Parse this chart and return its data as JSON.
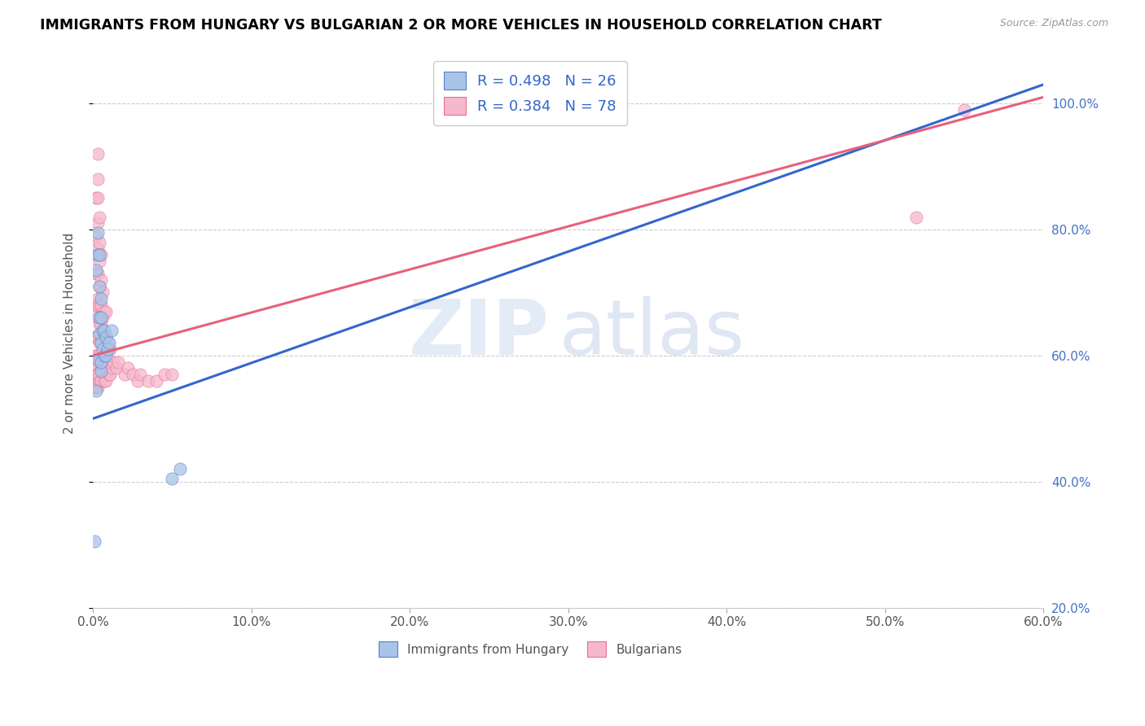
{
  "title": "IMMIGRANTS FROM HUNGARY VS BULGARIAN 2 OR MORE VEHICLES IN HOUSEHOLD CORRELATION CHART",
  "source": "Source: ZipAtlas.com",
  "ylabel": "2 or more Vehicles in Household",
  "xlim": [
    0.0,
    0.6
  ],
  "ylim": [
    0.2,
    1.07
  ],
  "hungary_color": "#a8c4e8",
  "bulgarian_color": "#f5b8cc",
  "hungary_edge_color": "#5580c8",
  "bulgarian_edge_color": "#e87090",
  "hungary_line_color": "#3366cc",
  "bulgarian_line_color": "#e8607a",
  "legend_text_1": "R = 0.498   N = 26",
  "legend_text_2": "R = 0.384   N = 78",
  "bottom_legend_1": "Immigrants from Hungary",
  "bottom_legend_2": "Bulgarians",
  "hungary_x": [
    0.001,
    0.002,
    0.002,
    0.003,
    0.003,
    0.003,
    0.004,
    0.004,
    0.004,
    0.004,
    0.005,
    0.005,
    0.005,
    0.005,
    0.005,
    0.006,
    0.006,
    0.007,
    0.007,
    0.008,
    0.008,
    0.009,
    0.01,
    0.012,
    0.05,
    0.055
  ],
  "hungary_y": [
    0.305,
    0.545,
    0.735,
    0.595,
    0.76,
    0.795,
    0.635,
    0.66,
    0.71,
    0.76,
    0.575,
    0.59,
    0.62,
    0.66,
    0.69,
    0.61,
    0.64,
    0.6,
    0.64,
    0.6,
    0.63,
    0.61,
    0.62,
    0.64,
    0.405,
    0.42
  ],
  "bulgarian_x": [
    0.001,
    0.001,
    0.001,
    0.001,
    0.001,
    0.002,
    0.002,
    0.002,
    0.002,
    0.002,
    0.002,
    0.002,
    0.002,
    0.002,
    0.003,
    0.003,
    0.003,
    0.003,
    0.003,
    0.003,
    0.003,
    0.003,
    0.003,
    0.003,
    0.003,
    0.003,
    0.004,
    0.004,
    0.004,
    0.004,
    0.004,
    0.004,
    0.004,
    0.004,
    0.004,
    0.004,
    0.004,
    0.005,
    0.005,
    0.005,
    0.005,
    0.005,
    0.005,
    0.005,
    0.005,
    0.006,
    0.006,
    0.006,
    0.006,
    0.007,
    0.007,
    0.007,
    0.007,
    0.008,
    0.008,
    0.008,
    0.008,
    0.009,
    0.009,
    0.01,
    0.01,
    0.011,
    0.011,
    0.012,
    0.013,
    0.015,
    0.016,
    0.02,
    0.022,
    0.025,
    0.028,
    0.03,
    0.035,
    0.04,
    0.045,
    0.05,
    0.52,
    0.55
  ],
  "bulgarian_y": [
    0.55,
    0.57,
    0.6,
    0.63,
    0.68,
    0.55,
    0.57,
    0.6,
    0.63,
    0.68,
    0.73,
    0.76,
    0.79,
    0.85,
    0.55,
    0.57,
    0.59,
    0.63,
    0.66,
    0.69,
    0.73,
    0.77,
    0.81,
    0.85,
    0.88,
    0.92,
    0.56,
    0.59,
    0.62,
    0.65,
    0.68,
    0.71,
    0.75,
    0.78,
    0.82,
    0.57,
    0.6,
    0.56,
    0.59,
    0.62,
    0.65,
    0.68,
    0.72,
    0.76,
    0.56,
    0.58,
    0.62,
    0.66,
    0.7,
    0.56,
    0.59,
    0.63,
    0.67,
    0.56,
    0.59,
    0.63,
    0.67,
    0.58,
    0.62,
    0.57,
    0.61,
    0.57,
    0.61,
    0.58,
    0.59,
    0.58,
    0.59,
    0.57,
    0.58,
    0.57,
    0.56,
    0.57,
    0.56,
    0.56,
    0.57,
    0.57,
    0.82,
    0.99
  ],
  "x_tick_vals": [
    0.0,
    0.1,
    0.2,
    0.3,
    0.4,
    0.5,
    0.6
  ],
  "x_tick_labels": [
    "0.0%",
    "10.0%",
    "20.0%",
    "30.0%",
    "40.0%",
    "50.0%",
    "60.0%"
  ],
  "y_tick_vals": [
    0.2,
    0.4,
    0.6,
    0.8,
    1.0
  ],
  "y_tick_labels": [
    "20.0%",
    "40.0%",
    "60.0%",
    "80.0%",
    "100.0%"
  ],
  "grid_color": "#cccccc",
  "text_color": "#555555",
  "right_axis_color": "#4472c4",
  "legend_text_color": "#3366cc",
  "hungary_line_x0": 0.0,
  "hungary_line_y0": 0.5,
  "hungary_line_x1": 0.6,
  "hungary_line_y1": 1.03,
  "bulgarian_line_x0": 0.0,
  "bulgarian_line_y0": 0.6,
  "bulgarian_line_x1": 0.6,
  "bulgarian_line_y1": 1.01
}
